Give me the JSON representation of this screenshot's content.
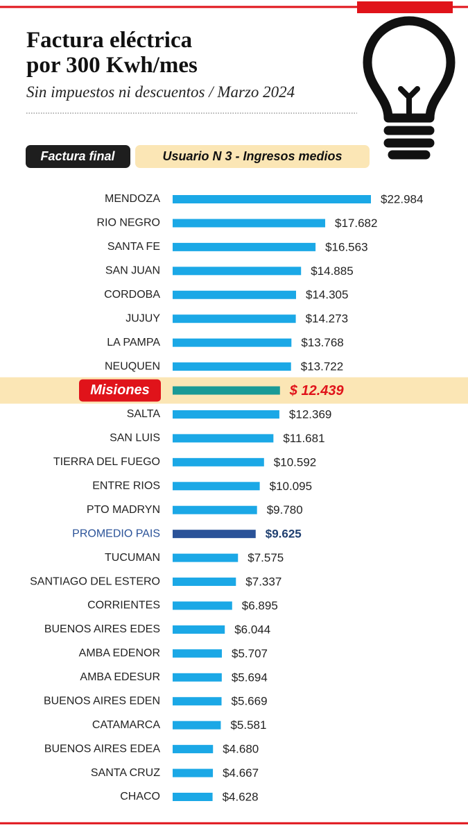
{
  "chart_data": {
    "type": "bar",
    "title": "Factura eléctrica\npor 300 Kwh/mes",
    "subtitle": "Sin impuestos ni descuentos / Marzo 2024",
    "badges": [
      "Factura final",
      "Usuario N 3 - Ingresos medios"
    ],
    "categories": [
      "MENDOZA",
      "RIO NEGRO",
      "SANTA FE",
      "SAN JUAN",
      "CORDOBA",
      "JUJUY",
      "LA PAMPA",
      "NEUQUEN",
      "Misiones",
      "SALTA",
      "SAN LUIS",
      "TIERRA DEL FUEGO",
      "ENTRE RIOS",
      "PTO MADRYN",
      "PROMEDIO PAIS",
      "TUCUMAN",
      "SANTIAGO DEL ESTERO",
      "CORRIENTES",
      "BUENOS AIRES EDES",
      "AMBA EDENOR",
      "AMBA EDESUR",
      "BUENOS AIRES EDEN",
      "CATAMARCA",
      "BUENOS AIRES EDEA",
      "SANTA CRUZ",
      "CHACO"
    ],
    "values": [
      22984,
      17682,
      16563,
      14885,
      14305,
      14273,
      13768,
      13722,
      12439,
      12369,
      11681,
      10592,
      10095,
      9780,
      9625,
      7575,
      7337,
      6895,
      6044,
      5707,
      5694,
      5669,
      5581,
      4680,
      4667,
      4628
    ],
    "value_labels": [
      "$22.984",
      "$17.682",
      "$16.563",
      "$14.885",
      "$14.305",
      "$14.273",
      "$13.768",
      "$13.722",
      "$ 12.439",
      "$12.369",
      "$11.681",
      "$10.592",
      "$10.095",
      "$9.780",
      "$9.625",
      "$7.575",
      "$7.337",
      "$6.895",
      "$6.044",
      "$5.707",
      "$5.694",
      "$5.669",
      "$5.581",
      "$4.680",
      "$4.667",
      "$4.628"
    ],
    "colors": [
      "#1ba8e6",
      "#1ba8e6",
      "#1ba8e6",
      "#1ba8e6",
      "#1ba8e6",
      "#1ba8e6",
      "#1ba8e6",
      "#1ba8e6",
      "#1a9a96",
      "#1ba8e6",
      "#1ba8e6",
      "#1ba8e6",
      "#1ba8e6",
      "#1ba8e6",
      "#2a5298",
      "#1ba8e6",
      "#1ba8e6",
      "#1ba8e6",
      "#1ba8e6",
      "#1ba8e6",
      "#1ba8e6",
      "#1ba8e6",
      "#1ba8e6",
      "#1ba8e6",
      "#1ba8e6",
      "#1ba8e6"
    ]
  }
}
